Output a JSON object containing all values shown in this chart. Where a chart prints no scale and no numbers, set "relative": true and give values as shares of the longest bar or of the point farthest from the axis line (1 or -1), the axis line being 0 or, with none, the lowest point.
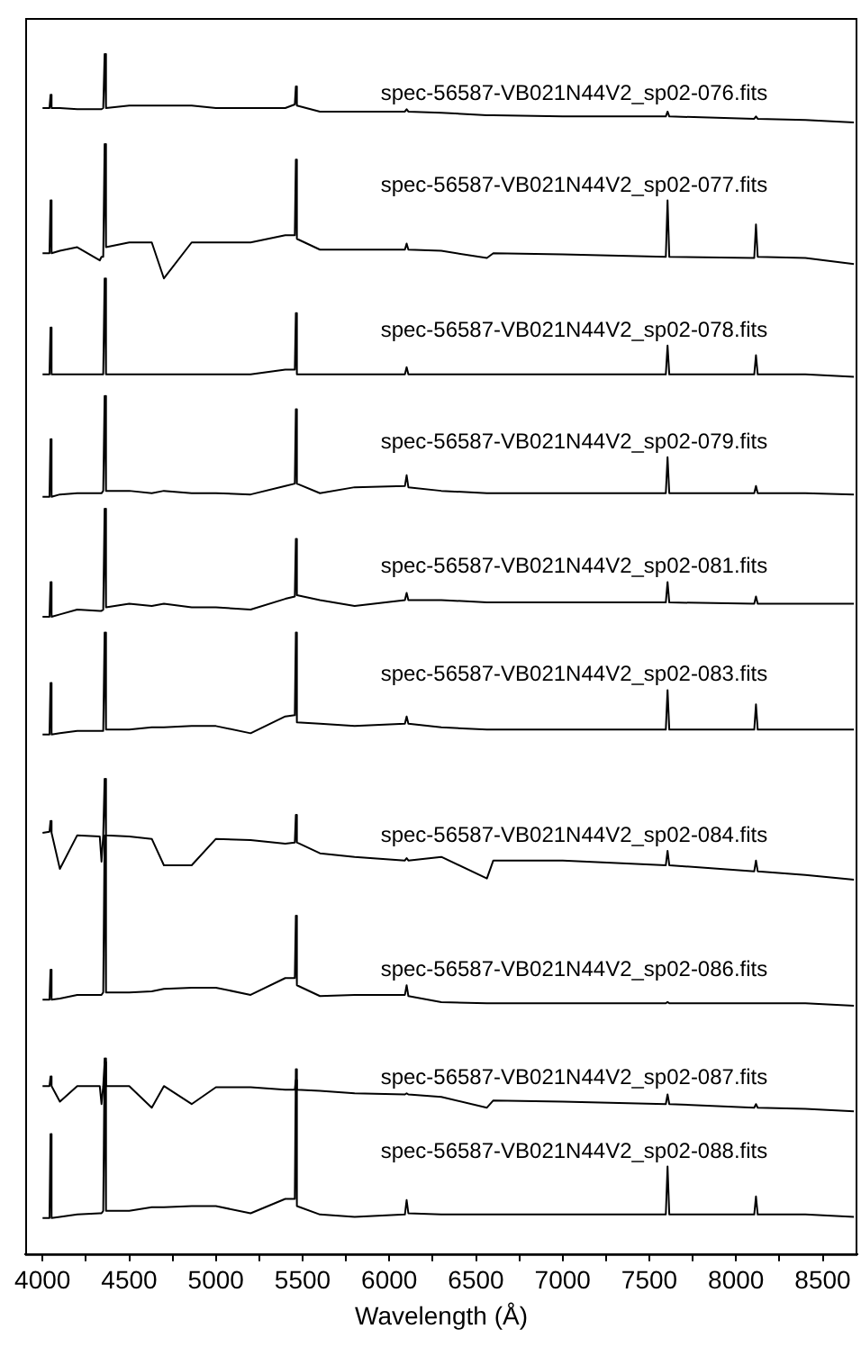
{
  "chart_data": {
    "type": "line",
    "relative": true,
    "xlabel": "Wavelength (Å)",
    "xlim": [
      3900,
      8700
    ],
    "xticks": [
      4000,
      {
        "value": 4250,
        "label": null
      },
      4500,
      {
        "value": 4750,
        "label": null
      },
      5000,
      {
        "value": 5250,
        "label": null
      },
      5500,
      {
        "value": 5750,
        "label": null
      },
      6000,
      {
        "value": 6250,
        "label": null
      },
      6500,
      {
        "value": 6750,
        "label": null
      },
      7000,
      {
        "value": 7250,
        "label": null
      },
      7500,
      {
        "value": 7750,
        "label": null
      },
      8000,
      {
        "value": 8250,
        "label": null
      },
      8500
    ],
    "grid": false,
    "legend": false,
    "marker": "none",
    "line_style": "solid",
    "x": [
      4000,
      4040,
      4046,
      4052,
      4100,
      4200,
      4330,
      4340,
      4350,
      4358,
      4366,
      4500,
      4630,
      4700,
      4860,
      5000,
      5200,
      5400,
      5455,
      5461,
      5467,
      5600,
      5800,
      6090,
      6100,
      6110,
      6300,
      6563,
      6600,
      7000,
      7595,
      7605,
      7615,
      8105,
      8115,
      8125,
      8400,
      8680
    ],
    "series": [
      {
        "name": "spec-56587-VB021N44V2_sp02-076.fits",
        "color": "#000000",
        "values": [
          0.955,
          0.955,
          0.966,
          0.955,
          0.955,
          0.954,
          0.954,
          0.954,
          0.955,
          1,
          0.955,
          0.957,
          0.957,
          0.957,
          0.957,
          0.955,
          0.955,
          0.955,
          0.958,
          0.973,
          0.957,
          0.952,
          0.952,
          0.952,
          0.954,
          0.952,
          0.951,
          0.949,
          0.949,
          0.948,
          0.948,
          0.952,
          0.948,
          0.946,
          0.948,
          0.946,
          0.945,
          0.943
        ]
      },
      {
        "name": "spec-56587-VB021N44V2_sp02-077.fits",
        "color": "#000000",
        "values": [
          0.834,
          0.834,
          0.878,
          0.834,
          0.836,
          0.839,
          0.828,
          0.831,
          0.831,
          0.925,
          0.839,
          0.843,
          0.843,
          0.813,
          0.843,
          0.843,
          0.843,
          0.849,
          0.849,
          0.912,
          0.846,
          0.837,
          0.837,
          0.837,
          0.842,
          0.837,
          0.836,
          0.83,
          0.834,
          0.833,
          0.831,
          0.878,
          0.831,
          0.83,
          0.858,
          0.831,
          0.83,
          0.825
        ]
      },
      {
        "name": "spec-56587-VB021N44V2_sp02-078.fits",
        "color": "#000000",
        "values": [
          0.733,
          0.733,
          0.772,
          0.733,
          0.733,
          0.733,
          0.733,
          0.733,
          0.733,
          0.813,
          0.733,
          0.733,
          0.733,
          0.733,
          0.733,
          0.733,
          0.733,
          0.737,
          0.737,
          0.784,
          0.733,
          0.733,
          0.733,
          0.733,
          0.739,
          0.733,
          0.733,
          0.733,
          0.733,
          0.733,
          0.733,
          0.757,
          0.733,
          0.733,
          0.749,
          0.733,
          0.733,
          0.731
        ]
      },
      {
        "name": "spec-56587-VB021N44V2_sp02-079.fits",
        "color": "#000000",
        "values": [
          0.631,
          0.631,
          0.679,
          0.631,
          0.633,
          0.634,
          0.634,
          0.634,
          0.636,
          0.715,
          0.636,
          0.636,
          0.634,
          0.636,
          0.634,
          0.634,
          0.633,
          0.64,
          0.642,
          0.704,
          0.642,
          0.634,
          0.639,
          0.64,
          0.649,
          0.639,
          0.636,
          0.634,
          0.634,
          0.634,
          0.634,
          0.664,
          0.634,
          0.634,
          0.64,
          0.634,
          0.634,
          0.633
        ]
      },
      {
        "name": "spec-56587-VB021N44V2_sp02-081.fits",
        "color": "#000000",
        "values": [
          0.531,
          0.531,
          0.56,
          0.531,
          0.533,
          0.537,
          0.536,
          0.536,
          0.537,
          0.621,
          0.539,
          0.542,
          0.54,
          0.542,
          0.539,
          0.539,
          0.537,
          0.546,
          0.548,
          0.596,
          0.549,
          0.545,
          0.54,
          0.545,
          0.551,
          0.545,
          0.545,
          0.543,
          0.543,
          0.543,
          0.543,
          0.56,
          0.543,
          0.542,
          0.548,
          0.542,
          0.542,
          0.542
        ]
      },
      {
        "name": "spec-56587-VB021N44V2_sp02-083.fits",
        "color": "#000000",
        "values": [
          0.433,
          0.433,
          0.476,
          0.433,
          0.434,
          0.436,
          0.436,
          0.436,
          0.436,
          0.518,
          0.437,
          0.437,
          0.439,
          0.439,
          0.44,
          0.44,
          0.434,
          0.448,
          0.449,
          0.518,
          0.443,
          0.442,
          0.44,
          0.442,
          0.448,
          0.442,
          0.439,
          0.437,
          0.437,
          0.437,
          0.437,
          0.47,
          0.437,
          0.437,
          0.458,
          0.437,
          0.437,
          0.437
        ]
      },
      {
        "name": "spec-56587-VB021N44V2_sp02-084.fits",
        "color": "#000000",
        "values": [
          0.351,
          0.352,
          0.361,
          0.351,
          0.321,
          0.349,
          0.348,
          0.327,
          0.349,
          0.396,
          0.349,
          0.348,
          0.346,
          0.324,
          0.324,
          0.346,
          0.345,
          0.342,
          0.343,
          0.366,
          0.343,
          0.334,
          0.331,
          0.328,
          0.33,
          0.328,
          0.331,
          0.313,
          0.328,
          0.328,
          0.324,
          0.336,
          0.324,
          0.319,
          0.328,
          0.319,
          0.316,
          0.312
        ]
      },
      {
        "name": "spec-56587-VB021N44V2_sp02-086.fits",
        "color": "#000000",
        "values": [
          0.212,
          0.212,
          0.237,
          0.212,
          0.213,
          0.216,
          0.216,
          0.216,
          0.218,
          0.349,
          0.218,
          0.218,
          0.219,
          0.221,
          0.222,
          0.222,
          0.216,
          0.23,
          0.23,
          0.282,
          0.224,
          0.215,
          0.216,
          0.216,
          0.224,
          0.215,
          0.21,
          0.209,
          0.209,
          0.209,
          0.209,
          0.21,
          0.209,
          0.209,
          0.209,
          0.209,
          0.209,
          0.207
        ]
      },
      {
        "name": "spec-56587-VB021N44V2_sp02-087.fits",
        "color": "#000000",
        "values": [
          0.14,
          0.14,
          0.148,
          0.14,
          0.127,
          0.14,
          0.14,
          0.125,
          0.14,
          0.16,
          0.14,
          0.14,
          0.122,
          0.14,
          0.125,
          0.139,
          0.139,
          0.137,
          0.137,
          0.145,
          0.137,
          0.136,
          0.134,
          0.133,
          0.134,
          0.133,
          0.131,
          0.122,
          0.128,
          0.127,
          0.125,
          0.133,
          0.125,
          0.122,
          0.125,
          0.122,
          0.121,
          0.119
        ]
      },
      {
        "name": "spec-56587-VB021N44V2_sp02-088.fits",
        "color": "#000000",
        "values": [
          0.03,
          0.03,
          0.1,
          0.03,
          0.031,
          0.033,
          0.034,
          0.034,
          0.036,
          0.163,
          0.036,
          0.036,
          0.039,
          0.039,
          0.04,
          0.04,
          0.034,
          0.046,
          0.046,
          0.154,
          0.04,
          0.033,
          0.031,
          0.033,
          0.045,
          0.034,
          0.033,
          0.033,
          0.033,
          0.033,
          0.033,
          0.073,
          0.033,
          0.033,
          0.048,
          0.033,
          0.033,
          0.031
        ]
      }
    ]
  }
}
